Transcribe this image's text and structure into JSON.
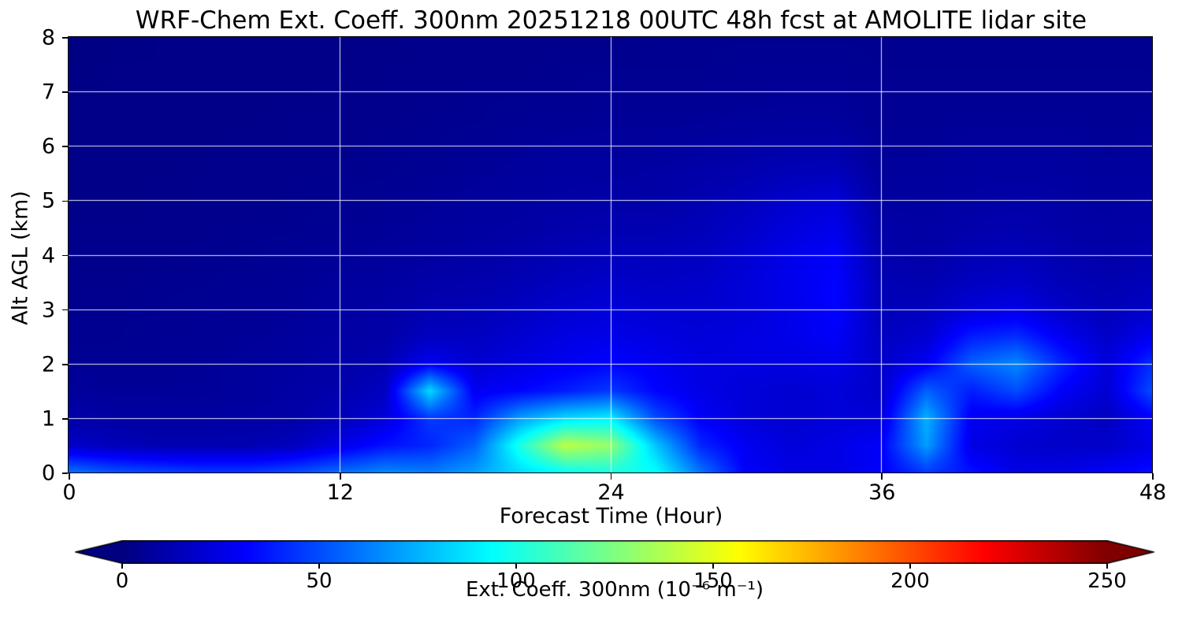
{
  "title": "WRF-Chem Ext. Coeff. 300nm  20251218 00UTC 48h fcst at AMOLITE lidar site",
  "chart_data": {
    "type": "heatmap",
    "title": "WRF-Chem Ext. Coeff. 300nm  20251218 00UTC 48h fcst at AMOLITE lidar site",
    "xlabel": "Forecast Time (Hour)",
    "ylabel": "Alt AGL (km)",
    "xlim": [
      0,
      48
    ],
    "ylim": [
      0,
      8
    ],
    "xticks": [
      0,
      12,
      24,
      36,
      48
    ],
    "yticks": [
      0,
      1,
      2,
      3,
      4,
      5,
      6,
      7,
      8
    ],
    "grid": true,
    "grid_color": "#ffffff",
    "colormap": "jet",
    "background_color": "#000080",
    "colorbar": {
      "label": "Ext. Coeff. 300nm  (10⁻⁶ m⁻¹)",
      "ticks": [
        0,
        50,
        100,
        150,
        200,
        250
      ],
      "vmin": 0,
      "vmax": 250,
      "extend": "both",
      "orientation": "horizontal"
    },
    "x": [
      0,
      2,
      4,
      6,
      8,
      10,
      12,
      14,
      16,
      18,
      20,
      22,
      24,
      26,
      28,
      30,
      32,
      34,
      36,
      38,
      40,
      42,
      44,
      46,
      48
    ],
    "y": [
      0,
      0.5,
      1,
      1.5,
      2,
      2.5,
      3,
      3.5,
      4,
      4.5,
      5,
      5.5,
      6,
      6.5,
      7,
      7.5,
      8
    ],
    "values_units": "10⁻⁶ m⁻¹",
    "values": [
      [
        60,
        52,
        48,
        45,
        45,
        50,
        58,
        65,
        62,
        70,
        85,
        95,
        100,
        95,
        60,
        30,
        25,
        25,
        30,
        45,
        35,
        25,
        25,
        30,
        35
      ],
      [
        18,
        14,
        12,
        12,
        12,
        15,
        25,
        35,
        40,
        55,
        100,
        140,
        130,
        80,
        40,
        28,
        22,
        25,
        30,
        70,
        25,
        20,
        18,
        18,
        25
      ],
      [
        10,
        9,
        8,
        8,
        9,
        10,
        14,
        22,
        45,
        40,
        70,
        85,
        90,
        50,
        30,
        22,
        20,
        22,
        22,
        75,
        28,
        25,
        20,
        16,
        30
      ],
      [
        7,
        6,
        6,
        6,
        7,
        9,
        11,
        16,
        85,
        28,
        32,
        38,
        45,
        32,
        25,
        22,
        20,
        22,
        18,
        55,
        38,
        50,
        30,
        20,
        50
      ],
      [
        5,
        5,
        5,
        6,
        7,
        8,
        10,
        12,
        28,
        20,
        24,
        28,
        32,
        28,
        24,
        24,
        24,
        26,
        18,
        28,
        55,
        65,
        40,
        22,
        42
      ],
      [
        4,
        4,
        5,
        5,
        6,
        7,
        9,
        10,
        16,
        16,
        20,
        24,
        26,
        24,
        22,
        24,
        26,
        30,
        16,
        20,
        38,
        42,
        28,
        18,
        28
      ],
      [
        4,
        4,
        4,
        5,
        5,
        6,
        8,
        9,
        12,
        13,
        16,
        20,
        22,
        20,
        20,
        22,
        26,
        32,
        14,
        15,
        22,
        25,
        18,
        14,
        18
      ],
      [
        3,
        3,
        4,
        4,
        5,
        5,
        7,
        8,
        10,
        11,
        13,
        16,
        18,
        17,
        18,
        22,
        27,
        32,
        13,
        12,
        16,
        18,
        14,
        12,
        14
      ],
      [
        3,
        3,
        3,
        4,
        4,
        5,
        6,
        7,
        8,
        9,
        11,
        13,
        15,
        15,
        16,
        20,
        26,
        30,
        11,
        10,
        13,
        14,
        12,
        10,
        12
      ],
      [
        3,
        3,
        3,
        3,
        4,
        4,
        5,
        6,
        7,
        8,
        9,
        11,
        12,
        12,
        14,
        18,
        23,
        26,
        10,
        9,
        11,
        12,
        10,
        9,
        10
      ],
      [
        2,
        2,
        3,
        3,
        3,
        4,
        4,
        5,
        6,
        7,
        8,
        9,
        10,
        10,
        12,
        15,
        19,
        22,
        8,
        8,
        9,
        10,
        9,
        8,
        9
      ],
      [
        2,
        2,
        2,
        3,
        3,
        3,
        4,
        4,
        5,
        6,
        7,
        8,
        8,
        9,
        10,
        12,
        14,
        15,
        7,
        7,
        8,
        8,
        8,
        7,
        8
      ],
      [
        2,
        2,
        2,
        2,
        3,
        3,
        3,
        4,
        4,
        5,
        6,
        7,
        7,
        7,
        8,
        9,
        10,
        10,
        6,
        6,
        7,
        7,
        7,
        6,
        7
      ],
      [
        2,
        2,
        2,
        2,
        2,
        3,
        3,
        3,
        4,
        4,
        5,
        5,
        6,
        6,
        6,
        7,
        7,
        7,
        5,
        5,
        6,
        6,
        6,
        5,
        6
      ],
      [
        2,
        2,
        2,
        2,
        2,
        2,
        3,
        3,
        3,
        4,
        4,
        4,
        5,
        5,
        5,
        5,
        6,
        6,
        5,
        5,
        5,
        5,
        5,
        5,
        5
      ],
      [
        1,
        2,
        2,
        2,
        2,
        2,
        2,
        3,
        3,
        3,
        3,
        4,
        4,
        4,
        4,
        5,
        5,
        5,
        4,
        4,
        4,
        4,
        4,
        4,
        4
      ],
      [
        1,
        1,
        2,
        2,
        2,
        2,
        2,
        2,
        3,
        3,
        3,
        3,
        3,
        4,
        4,
        4,
        4,
        4,
        4,
        4,
        4,
        4,
        4,
        4,
        4
      ]
    ]
  }
}
